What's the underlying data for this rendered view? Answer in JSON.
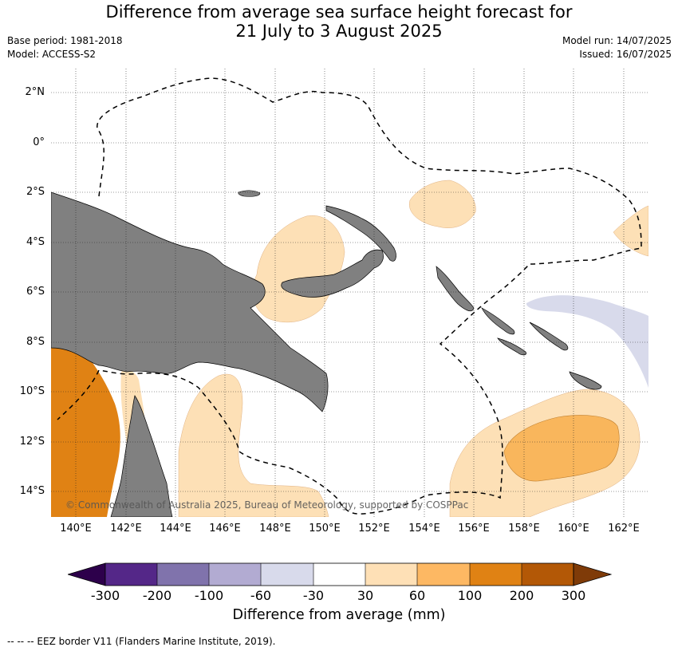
{
  "header": {
    "title_line1": "Difference from average sea surface height forecast for",
    "title_line2": "21 July to 3 August 2025",
    "base_period": "Base period: 1981-2018",
    "model": "Model: ACCESS-S2",
    "model_run": "Model run: 14/07/2025",
    "issued": "Issued: 16/07/2025"
  },
  "map": {
    "lat_labels": [
      "2°N",
      "0°",
      "2°S",
      "4°S",
      "6°S",
      "8°S",
      "10°S",
      "12°S",
      "14°S"
    ],
    "lon_labels": [
      "140°E",
      "142°E",
      "144°E",
      "146°E",
      "148°E",
      "150°E",
      "152°E",
      "154°E",
      "156°E",
      "158°E",
      "160°E",
      "162°E"
    ],
    "copyright": "© Commonwealth of Australia 2025, Bureau of Meteorology, supported by COSPPac",
    "colors": {
      "land": "#808080",
      "anomaly_30_60": "#fde0b6",
      "anomaly_60_100": "#f9b65c",
      "anomaly_100_200": "#e08214",
      "anomaly_neg_30_60": "#d8daeb"
    }
  },
  "colorbar": {
    "label": "Difference from average (mm)",
    "ticks": [
      "-300",
      "-200",
      "-100",
      "-60",
      "-30",
      "30",
      "60",
      "100",
      "200",
      "300"
    ],
    "colors": [
      "#2d004b",
      "#542788",
      "#8073ac",
      "#b2abd2",
      "#d8daeb",
      "#ffffff",
      "#fee0b6",
      "#fdb863",
      "#e08214",
      "#b35806",
      "#7f3b08"
    ]
  },
  "legend": {
    "eez": "--  --  -- EEZ border V11 (Flanders Marine Institute, 2019)."
  }
}
